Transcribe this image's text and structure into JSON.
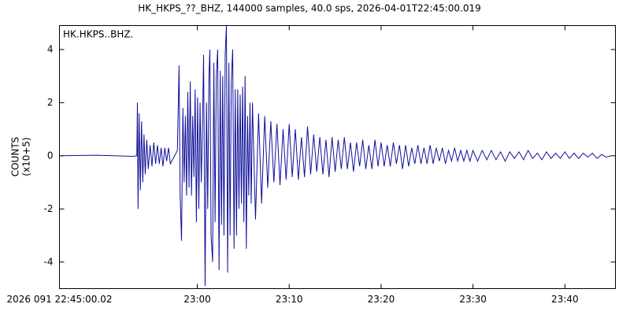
{
  "chart_data": {
    "type": "line",
    "title": "HK_HKPS_??_BHZ, 144000 samples, 40.0 sps, 2026-04-01T22:45:00.019",
    "y_label": [
      "COUNTS",
      "(x10+5)"
    ],
    "xlim": [
      "22:45:00.02",
      "23:45:30"
    ],
    "xticks": [
      {
        "value": "22:45:00.02",
        "label": "2026 091 22:45:00.02"
      },
      "23:00",
      "23:10",
      "23:20",
      "23:30",
      "23:40"
    ],
    "ylim": [
      -5.0,
      4.9
    ],
    "yticks": [
      4,
      2,
      0,
      -2,
      -4
    ],
    "x": [
      "22:45:00",
      "22:49:00",
      "22:53:00",
      "22:53:25",
      "22:53:29",
      "22:53:33",
      "22:53:40",
      "22:53:48",
      "22:53:56",
      "22:54:04",
      "22:54:12",
      "22:54:20",
      "22:54:30",
      "22:54:40",
      "22:54:52",
      "22:55:04",
      "22:55:16",
      "22:55:28",
      "22:55:40",
      "22:55:52",
      "22:56:04",
      "22:56:16",
      "22:56:28",
      "22:56:40",
      "22:56:52",
      "22:57:04",
      "22:57:50",
      "22:58:01",
      "22:58:08",
      "22:58:17",
      "22:58:26",
      "22:58:34",
      "22:58:42",
      "22:58:50",
      "22:58:58",
      "22:59:06",
      "22:59:14",
      "22:59:22",
      "22:59:30",
      "22:59:38",
      "22:59:46",
      "22:59:54",
      "23:00:02",
      "23:00:10",
      "23:00:18",
      "23:00:26",
      "23:00:34",
      "23:00:41",
      "23:00:51",
      "23:01:00",
      "23:01:08",
      "23:01:16",
      "23:01:22",
      "23:01:30",
      "23:01:40",
      "23:01:48",
      "23:01:56",
      "23:02:04",
      "23:02:13",
      "23:02:22",
      "23:02:30",
      "23:02:38",
      "23:02:46",
      "23:02:54",
      "23:03:02",
      "23:03:10",
      "23:03:18",
      "23:03:26",
      "23:03:34",
      "23:03:42",
      "23:03:51",
      "23:04:00",
      "23:04:08",
      "23:04:16",
      "23:04:24",
      "23:04:32",
      "23:04:40",
      "23:04:48",
      "23:04:56",
      "23:05:04",
      "23:05:12",
      "23:05:20",
      "23:05:28",
      "23:05:36",
      "23:05:44",
      "23:05:52",
      "23:06:00",
      "23:06:20",
      "23:06:40",
      "23:07:00",
      "23:07:20",
      "23:07:40",
      "23:08:00",
      "23:08:20",
      "23:08:40",
      "23:09:00",
      "23:09:20",
      "23:09:40",
      "23:10:00",
      "23:10:20",
      "23:10:40",
      "23:11:00",
      "23:11:20",
      "23:11:40",
      "23:12:00",
      "23:12:20",
      "23:12:40",
      "23:13:00",
      "23:13:20",
      "23:13:40",
      "23:14:00",
      "23:14:20",
      "23:14:40",
      "23:15:00",
      "23:15:20",
      "23:15:40",
      "23:16:00",
      "23:16:20",
      "23:16:40",
      "23:17:00",
      "23:17:20",
      "23:17:40",
      "23:18:00",
      "23:18:20",
      "23:18:40",
      "23:19:00",
      "23:19:20",
      "23:19:40",
      "23:20:00",
      "23:20:20",
      "23:20:40",
      "23:21:00",
      "23:21:20",
      "23:21:40",
      "23:22:00",
      "23:22:20",
      "23:22:40",
      "23:23:00",
      "23:23:20",
      "23:23:40",
      "23:24:00",
      "23:24:20",
      "23:24:40",
      "23:25:00",
      "23:25:20",
      "23:25:40",
      "23:26:00",
      "23:26:20",
      "23:26:40",
      "23:27:00",
      "23:27:20",
      "23:27:40",
      "23:28:00",
      "23:28:20",
      "23:28:40",
      "23:29:00",
      "23:29:20",
      "23:29:40",
      "23:30:00",
      "23:30:30",
      "23:31:00",
      "23:31:30",
      "23:32:00",
      "23:32:30",
      "23:33:00",
      "23:33:30",
      "23:34:00",
      "23:34:30",
      "23:35:00",
      "23:35:30",
      "23:36:00",
      "23:36:30",
      "23:37:00",
      "23:37:30",
      "23:38:00",
      "23:38:30",
      "23:39:00",
      "23:39:30",
      "23:40:00",
      "23:40:30",
      "23:41:00",
      "23:41:30",
      "23:42:00",
      "23:42:30",
      "23:43:00",
      "23:43:30",
      "23:44:00",
      "23:44:30",
      "23:45:00"
    ],
    "series": [
      {
        "name": "HK.HKPS..BHZ.",
        "color": "#10109a",
        "values": [
          0.0,
          0.02,
          -0.02,
          0.0,
          2.0,
          -2.0,
          1.6,
          -1.3,
          1.3,
          -1.0,
          0.8,
          -0.7,
          0.6,
          -0.5,
          0.4,
          -0.4,
          0.5,
          -0.3,
          0.4,
          -0.3,
          0.3,
          -0.4,
          0.3,
          -0.2,
          0.3,
          -0.3,
          0.2,
          3.4,
          -1.5,
          -3.2,
          1.8,
          -1.0,
          1.5,
          -1.5,
          2.4,
          -1.2,
          2.8,
          -1.5,
          1.5,
          -0.8,
          2.5,
          -2.5,
          2.2,
          -2.0,
          2.0,
          -1.0,
          1.2,
          3.8,
          -4.9,
          2.0,
          -2.0,
          3.0,
          4.0,
          -3.0,
          -4.0,
          3.5,
          -2.5,
          3.0,
          4.0,
          -4.3,
          3.2,
          -2.6,
          3.0,
          -3.0,
          3.8,
          4.9,
          -4.4,
          3.5,
          -3.0,
          2.8,
          4.0,
          -3.5,
          2.5,
          -3.0,
          2.5,
          -2.0,
          2.3,
          -1.8,
          2.6,
          -2.5,
          3.0,
          -3.5,
          1.5,
          -1.5,
          2.0,
          -1.8,
          2.0,
          -2.4,
          1.6,
          -1.8,
          1.5,
          -1.2,
          1.3,
          -1.0,
          1.2,
          -1.1,
          1.0,
          -0.9,
          1.2,
          -0.8,
          1.0,
          -0.9,
          0.7,
          -0.8,
          1.1,
          -0.7,
          0.8,
          -0.6,
          0.7,
          -0.7,
          0.6,
          -0.8,
          0.7,
          -0.6,
          0.6,
          -0.5,
          0.7,
          -0.5,
          0.5,
          -0.6,
          0.5,
          -0.4,
          0.6,
          -0.5,
          0.4,
          -0.5,
          0.6,
          -0.4,
          0.5,
          -0.4,
          0.4,
          -0.4,
          0.5,
          -0.3,
          0.4,
          -0.5,
          0.4,
          -0.4,
          0.3,
          -0.3,
          0.4,
          -0.3,
          0.3,
          -0.3,
          0.4,
          -0.3,
          0.3,
          -0.2,
          0.3,
          -0.3,
          0.2,
          -0.2,
          0.3,
          -0.2,
          0.2,
          -0.2,
          0.2,
          -0.2,
          0.2,
          -0.2,
          0.2,
          -0.15,
          0.2,
          -0.15,
          0.15,
          -0.2,
          0.15,
          -0.1,
          0.15,
          -0.15,
          0.2,
          -0.1,
          0.1,
          -0.15,
          0.15,
          -0.1,
          0.1,
          -0.1,
          0.15,
          -0.1,
          0.1,
          -0.1,
          0.1,
          -0.05,
          0.1,
          -0.1,
          0.05,
          -0.05,
          0.0
        ]
      }
    ]
  }
}
